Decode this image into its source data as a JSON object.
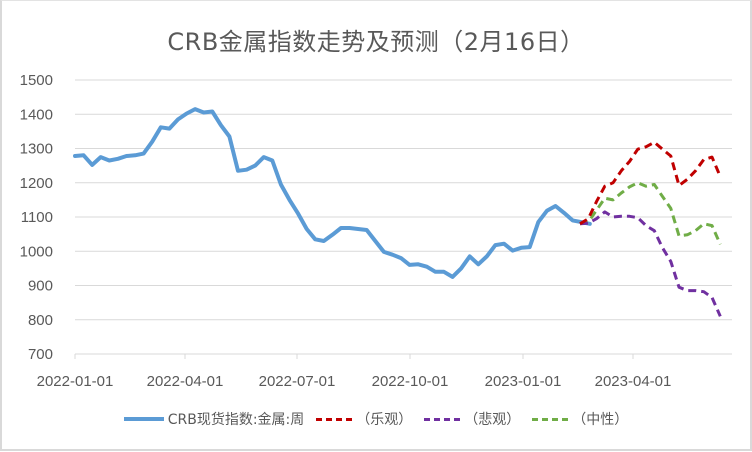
{
  "chart_data": {
    "type": "line",
    "title": "CRB金属指数走势及预测（2月16日）",
    "xlabel": "",
    "ylabel": "",
    "ylim": [
      700,
      1500
    ],
    "yticks": [
      700,
      800,
      900,
      1000,
      1100,
      1200,
      1300,
      1400,
      1500
    ],
    "xtick_labels": [
      "2022-01-01",
      "2022-04-01",
      "2022-07-01",
      "2022-10-01",
      "2023-01-01",
      "2023-04-01"
    ],
    "grid": "horizontal",
    "legend_position": "bottom",
    "frequency": "weekly",
    "series": [
      {
        "name": "CRB现货指数:金属:周",
        "style": "solid",
        "color": "#5b9bd5",
        "start": "2022-01-01",
        "values": [
          1278,
          1280,
          1252,
          1275,
          1265,
          1270,
          1278,
          1280,
          1285,
          1320,
          1362,
          1358,
          1385,
          1402,
          1415,
          1405,
          1408,
          1368,
          1335,
          1235,
          1238,
          1250,
          1275,
          1265,
          1195,
          1150,
          1110,
          1065,
          1035,
          1030,
          1048,
          1068,
          1068,
          1065,
          1062,
          1030,
          998,
          990,
          980,
          960,
          962,
          955,
          940,
          940,
          925,
          950,
          985,
          962,
          985,
          1018,
          1022,
          1002,
          1010,
          1012,
          1085,
          1118,
          1132,
          1112,
          1090,
          1085,
          1080
        ]
      },
      {
        "name": "（乐观）",
        "style": "dashed",
        "color": "#c00000",
        "start_index": 60,
        "values": [
          1080,
          1095,
          1145,
          1190,
          1200,
          1235,
          1262,
          1298,
          1305,
          1318,
          1298,
          1278,
          1192,
          1210,
          1235,
          1268,
          1275,
          1218
        ]
      },
      {
        "name": "（悲观）",
        "style": "dashed",
        "color": "#7030a0",
        "start_index": 60,
        "values": [
          1080,
          1082,
          1095,
          1115,
          1100,
          1102,
          1102,
          1098,
          1075,
          1060,
          1010,
          970,
          895,
          885,
          885,
          882,
          865,
          810
        ]
      },
      {
        "name": "（中性）",
        "style": "dashed",
        "color": "#70ad47",
        "start_index": 60,
        "values": [
          1080,
          1085,
          1120,
          1155,
          1150,
          1170,
          1188,
          1200,
          1190,
          1195,
          1160,
          1125,
          1045,
          1048,
          1060,
          1080,
          1075,
          1020
        ]
      }
    ]
  },
  "legend": {
    "items": [
      {
        "label": "CRB现货指数:金属:周",
        "color": "#5b9bd5",
        "style": "solid"
      },
      {
        "label": "（乐观）",
        "color": "#c00000",
        "style": "dashed"
      },
      {
        "label": "（悲观）",
        "color": "#7030a0",
        "style": "dashed"
      },
      {
        "label": "（中性）",
        "color": "#70ad47",
        "style": "dashed"
      }
    ]
  }
}
